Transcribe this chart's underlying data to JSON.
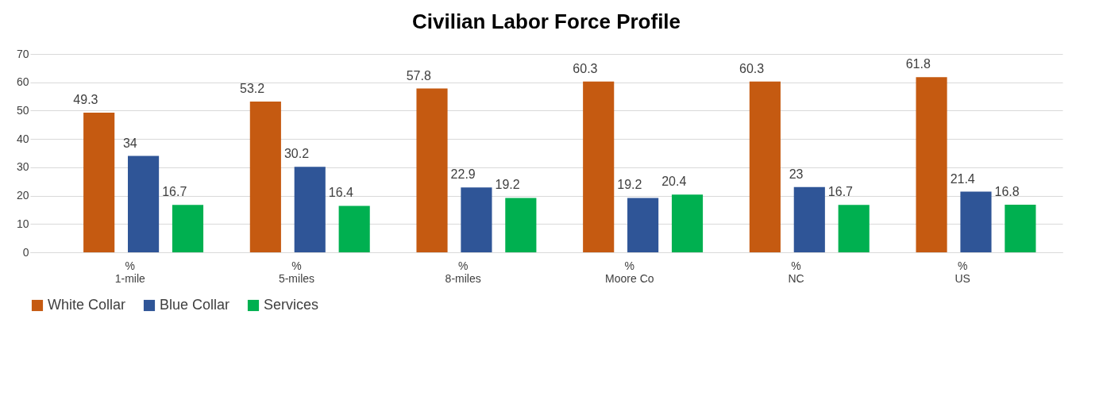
{
  "chart_data": {
    "type": "bar",
    "title": "Civilian Labor Force Profile",
    "categories": [
      "%\n1-mile",
      "%\n5-miles",
      "%\n8-miles",
      "%\nMoore Co",
      "%\nNC",
      "%\nUS"
    ],
    "series": [
      {
        "name": "White Collar",
        "color": "#c55a11",
        "values": [
          49.3,
          53.2,
          57.8,
          60.3,
          60.3,
          61.8
        ]
      },
      {
        "name": "Blue Collar",
        "color": "#2f5597",
        "values": [
          34,
          30.2,
          22.9,
          19.2,
          23,
          21.4
        ]
      },
      {
        "name": "Services",
        "color": "#00b050",
        "values": [
          16.7,
          16.4,
          19.2,
          20.4,
          16.7,
          16.8
        ]
      }
    ],
    "ylim": [
      0,
      70
    ],
    "yticks": [
      0,
      10,
      20,
      30,
      40,
      50,
      60,
      70
    ],
    "grid": "y",
    "legend": "bottom",
    "data_labels": true
  }
}
